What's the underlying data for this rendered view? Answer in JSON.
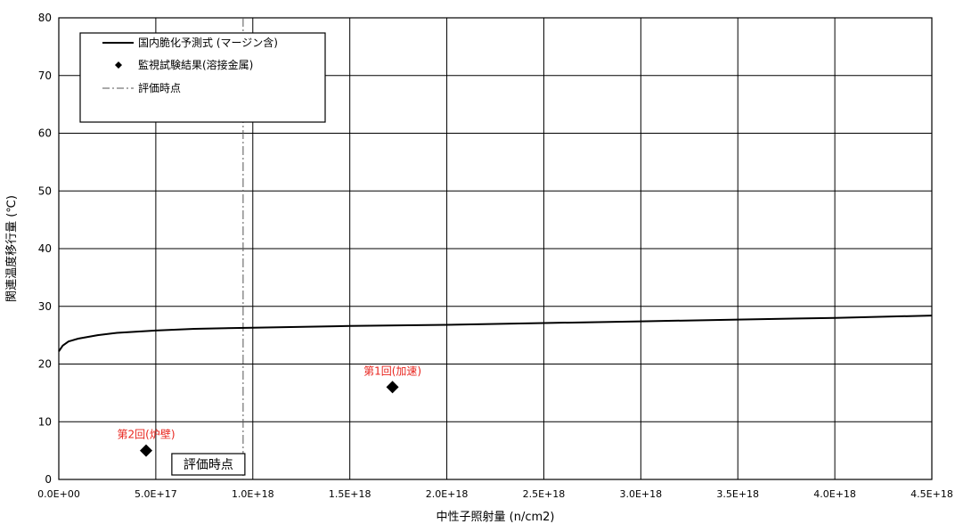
{
  "chart_data": {
    "type": "scatter",
    "title": "",
    "xlabel": "中性子照射量 (n/cm2)",
    "ylabel": "関連温度移行量 (℃)",
    "xlim": [
      0,
      4.5e+18
    ],
    "ylim": [
      0,
      80
    ],
    "x_ticks": [
      0,
      5e+17,
      1e+18,
      1.5e+18,
      2e+18,
      2.5e+18,
      3e+18,
      3.5e+18,
      4e+18,
      4.5e+18
    ],
    "x_tick_labels": [
      "0.0E+00",
      "5.0E+17",
      "1.0E+18",
      "1.5E+18",
      "2.0E+18",
      "2.5E+18",
      "3.0E+18",
      "3.5E+18",
      "4.0E+18",
      "4.5E+18"
    ],
    "y_ticks": [
      0,
      10,
      20,
      30,
      40,
      50,
      60,
      70,
      80
    ],
    "y_tick_labels": [
      "0",
      "10",
      "20",
      "30",
      "40",
      "50",
      "60",
      "70",
      "80"
    ],
    "grid": true,
    "legend_position": "top-left",
    "series": [
      {
        "name": "国内脆化予測式 (マージン含)",
        "kind": "line",
        "color": "#000000",
        "x": [
          0,
          2e+16,
          5e+16,
          1e+17,
          2e+17,
          3e+17,
          5e+17,
          7e+17,
          1e+18,
          1.5e+18,
          2e+18,
          2.5e+18,
          3e+18,
          3.5e+18,
          4e+18,
          4.5e+18
        ],
        "y": [
          22.2,
          23.2,
          23.9,
          24.4,
          25.0,
          25.4,
          25.8,
          26.1,
          26.3,
          26.6,
          26.8,
          27.1,
          27.4,
          27.7,
          28.0,
          28.4
        ]
      },
      {
        "name": "監視試験結果(溶接金属)",
        "kind": "scatter",
        "marker": "diamond",
        "color": "#000000",
        "points": [
          {
            "x": 4.5e+17,
            "y": 5.0,
            "label": "第2回(炉壁)"
          },
          {
            "x": 1.72e+18,
            "y": 16.0,
            "label": "第1回(加速)"
          }
        ]
      },
      {
        "name": "評価時点",
        "kind": "vline",
        "x": 9.5e+17,
        "style": "dash-dot",
        "color": "#555555"
      }
    ],
    "annotations": [
      {
        "text": "評価時点",
        "boxed": true,
        "x": 9.5e+17
      }
    ],
    "annotation_color": "#e8231c"
  }
}
